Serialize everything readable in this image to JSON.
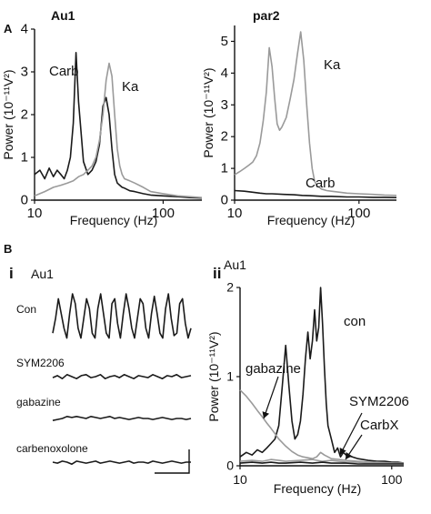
{
  "labels": {
    "panel_a": "A",
    "panel_b": "B",
    "sub_i": "i",
    "sub_ii": "ii",
    "au1_i": "Au1",
    "au1_ii": "Au1"
  },
  "colors": {
    "black_trace": "#1a1a1a",
    "gray_trace": "#9a9a9a"
  },
  "chart_data": [
    {
      "type": "line",
      "title": "Au1",
      "xlabel": "Frequency (Hz)",
      "ylabel": "Power (10⁻¹¹V²)",
      "xscale": "log",
      "xlim": [
        10,
        200
      ],
      "ylim": [
        0,
        4
      ],
      "x_tick_labels": [
        "10",
        "100"
      ],
      "y_ticks": [
        0,
        1,
        2,
        3,
        4
      ],
      "series": [
        {
          "name": "Carb",
          "color": "#1a1a1a",
          "x": [
            10,
            11,
            12,
            13,
            14,
            15,
            16,
            17,
            18,
            19,
            20,
            21,
            22,
            24,
            26,
            28,
            30,
            32,
            34,
            36,
            38,
            40,
            42,
            44,
            46,
            48,
            50,
            55,
            60,
            70,
            80,
            100,
            130,
            160,
            200
          ],
          "y": [
            0.6,
            0.7,
            0.5,
            0.75,
            0.55,
            0.7,
            0.6,
            0.5,
            0.7,
            1.0,
            1.8,
            3.45,
            2.3,
            0.9,
            0.6,
            0.7,
            0.9,
            1.3,
            2.2,
            2.4,
            2.0,
            1.2,
            0.6,
            0.4,
            0.35,
            0.3,
            0.28,
            0.22,
            0.2,
            0.15,
            0.12,
            0.1,
            0.08,
            0.06,
            0.05
          ]
        },
        {
          "name": "Ka",
          "color": "#9a9a9a",
          "x": [
            10,
            12,
            14,
            16,
            18,
            20,
            22,
            24,
            26,
            28,
            30,
            32,
            34,
            36,
            38,
            40,
            42,
            44,
            46,
            48,
            50,
            55,
            60,
            70,
            80,
            100,
            130,
            160,
            200
          ],
          "y": [
            0.1,
            0.2,
            0.3,
            0.35,
            0.4,
            0.45,
            0.55,
            0.6,
            0.7,
            0.8,
            1.0,
            1.4,
            2.0,
            2.8,
            3.2,
            2.9,
            2.0,
            1.2,
            0.8,
            0.6,
            0.5,
            0.45,
            0.4,
            0.3,
            0.2,
            0.15,
            0.1,
            0.08,
            0.06
          ]
        }
      ],
      "annotations": [
        {
          "text": "Carb",
          "target_series": "Carb"
        },
        {
          "text": "Ka",
          "target_series": "Ka"
        }
      ]
    },
    {
      "type": "line",
      "title": "par2",
      "xlabel": "Frequency (Hz)",
      "ylabel": "Power (10⁻¹¹V²)",
      "xscale": "log",
      "xlim": [
        10,
        200
      ],
      "ylim": [
        0,
        5.5
      ],
      "x_tick_labels": [
        "10",
        "100"
      ],
      "y_ticks": [
        0,
        1,
        2,
        3,
        4,
        5
      ],
      "series": [
        {
          "name": "Ka",
          "color": "#9a9a9a",
          "x": [
            10,
            11,
            12,
            13,
            14,
            15,
            16,
            17,
            18,
            19,
            20,
            21,
            22,
            23,
            24,
            26,
            28,
            30,
            32,
            34,
            36,
            38,
            40,
            42,
            44,
            46,
            48,
            50,
            55,
            60,
            70,
            80,
            100,
            130,
            160,
            200
          ],
          "y": [
            0.8,
            0.9,
            1.0,
            1.1,
            1.2,
            1.4,
            1.8,
            2.5,
            3.4,
            4.8,
            4.2,
            3.2,
            2.4,
            2.2,
            2.3,
            2.6,
            3.2,
            3.8,
            4.6,
            5.3,
            4.4,
            3.0,
            1.8,
            1.0,
            0.6,
            0.45,
            0.4,
            0.35,
            0.3,
            0.28,
            0.25,
            0.22,
            0.2,
            0.18,
            0.16,
            0.15
          ]
        },
        {
          "name": "Carb",
          "color": "#1a1a1a",
          "x": [
            10,
            12,
            14,
            16,
            18,
            20,
            25,
            30,
            35,
            40,
            50,
            60,
            80,
            100,
            130,
            160,
            200
          ],
          "y": [
            0.3,
            0.28,
            0.25,
            0.22,
            0.2,
            0.2,
            0.18,
            0.17,
            0.15,
            0.14,
            0.12,
            0.12,
            0.1,
            0.1,
            0.09,
            0.09,
            0.08
          ]
        }
      ],
      "annotations": [
        {
          "text": "Ka",
          "target_series": "Ka"
        },
        {
          "text": "Carb",
          "target_series": "Carb"
        }
      ]
    },
    {
      "type": "line",
      "title": "Au1",
      "xlabel": "",
      "ylabel": "",
      "traces": [
        {
          "name": "Con",
          "values": [
            0.2,
            0.5,
            0.9,
            0.6,
            0.3,
            0.1,
            0.6,
            1.0,
            0.8,
            0.3,
            0.1,
            0.5,
            0.9,
            0.7,
            0.2,
            0.1,
            0.7,
            1.0,
            0.6,
            0.2,
            0.1,
            0.8,
            0.9,
            0.4,
            0.1,
            0.6,
            1.0,
            0.7,
            0.3,
            0.1,
            0.5,
            0.9,
            0.8,
            0.3,
            0.1,
            0.6,
            0.95,
            0.6,
            0.2,
            0.1,
            0.7,
            1.0,
            0.5,
            0.15,
            0.2,
            0.8,
            0.9,
            0.4,
            0.1,
            0.3
          ]
        },
        {
          "name": "SYM2206",
          "values": [
            0.45,
            0.55,
            0.4,
            0.6,
            0.5,
            0.4,
            0.55,
            0.6,
            0.45,
            0.5,
            0.6,
            0.4,
            0.5,
            0.55,
            0.45,
            0.6,
            0.5,
            0.4,
            0.55,
            0.5,
            0.45,
            0.6,
            0.5,
            0.4,
            0.55,
            0.5,
            0.6,
            0.45,
            0.5,
            0.55
          ]
        },
        {
          "name": "gabazine",
          "values": [
            0.4,
            0.45,
            0.5,
            0.6,
            0.55,
            0.6,
            0.55,
            0.5,
            0.6,
            0.55,
            0.5,
            0.55,
            0.6,
            0.5,
            0.55,
            0.5,
            0.45,
            0.5,
            0.55,
            0.5,
            0.5,
            0.45,
            0.5,
            0.55,
            0.5,
            0.45,
            0.5,
            0.5,
            0.45,
            0.5
          ]
        },
        {
          "name": "carbenoxolone",
          "values": [
            0.5,
            0.45,
            0.55,
            0.5,
            0.4,
            0.55,
            0.5,
            0.45,
            0.5,
            0.55,
            0.45,
            0.5,
            0.55,
            0.5,
            0.45,
            0.5,
            0.55,
            0.45,
            0.5,
            0.5,
            0.45,
            0.55,
            0.5,
            0.45,
            0.5,
            0.55,
            0.5,
            0.45,
            0.5,
            0.5
          ]
        }
      ]
    },
    {
      "type": "line",
      "title": "Au1",
      "xlabel": "Frequency (Hz)",
      "ylabel": "Power (10⁻¹¹V²)",
      "xscale": "log",
      "xlim": [
        10,
        120
      ],
      "ylim": [
        0,
        2
      ],
      "x_tick_labels": [
        "10",
        "100"
      ],
      "y_ticks": [
        0,
        1,
        2
      ],
      "series": [
        {
          "name": "con",
          "color": "#1a1a1a",
          "x": [
            10,
            11,
            12,
            13,
            14,
            15,
            16,
            17,
            18,
            19,
            20,
            21,
            22,
            23,
            24,
            25,
            26,
            27,
            28,
            29,
            30,
            31,
            32,
            33,
            34,
            35,
            36,
            37,
            38,
            40,
            42,
            44,
            46,
            48,
            50,
            55,
            60,
            70,
            80,
            90,
            100,
            110,
            120
          ],
          "y": [
            0.1,
            0.15,
            0.12,
            0.18,
            0.15,
            0.2,
            0.25,
            0.3,
            0.45,
            0.9,
            1.35,
            0.9,
            0.5,
            0.3,
            0.35,
            0.5,
            0.8,
            1.2,
            1.5,
            1.2,
            1.4,
            1.75,
            1.4,
            1.55,
            2.0,
            1.6,
            1.1,
            0.7,
            0.45,
            0.3,
            0.15,
            0.2,
            0.1,
            0.15,
            0.12,
            0.1,
            0.08,
            0.06,
            0.05,
            0.05,
            0.04,
            0.04,
            0.03
          ]
        },
        {
          "name": "gabazine",
          "color": "#9a9a9a",
          "x": [
            10,
            11,
            12,
            13,
            14,
            15,
            16,
            17,
            18,
            20,
            22,
            24,
            26,
            28,
            30,
            32,
            34,
            36,
            38,
            40,
            45,
            50,
            60,
            70,
            80,
            100,
            120
          ],
          "y": [
            0.85,
            0.78,
            0.7,
            0.62,
            0.55,
            0.48,
            0.42,
            0.36,
            0.3,
            0.22,
            0.16,
            0.12,
            0.1,
            0.09,
            0.08,
            0.1,
            0.15,
            0.12,
            0.1,
            0.08,
            0.07,
            0.06,
            0.05,
            0.04,
            0.04,
            0.03,
            0.03
          ]
        },
        {
          "name": "SYM2206",
          "color": "#9a9a9a",
          "x": [
            10,
            12,
            14,
            16,
            18,
            20,
            25,
            30,
            35,
            40,
            45,
            50,
            60,
            70,
            80,
            100,
            120
          ],
          "y": [
            0.05,
            0.06,
            0.05,
            0.07,
            0.06,
            0.05,
            0.06,
            0.07,
            0.05,
            0.06,
            0.05,
            0.04,
            0.04,
            0.03,
            0.03,
            0.03,
            0.02
          ]
        },
        {
          "name": "CarbX",
          "color": "#1a1a1a",
          "x": [
            10,
            12,
            14,
            16,
            18,
            20,
            25,
            30,
            35,
            40,
            45,
            50,
            60,
            70,
            80,
            100,
            120
          ],
          "y": [
            0.03,
            0.04,
            0.03,
            0.04,
            0.03,
            0.03,
            0.04,
            0.03,
            0.04,
            0.03,
            0.03,
            0.03,
            0.02,
            0.02,
            0.02,
            0.02,
            0.02
          ]
        }
      ],
      "annotations": [
        {
          "text": "con",
          "target_series": "con"
        },
        {
          "text": "gabazine",
          "target_series": "gabazine"
        },
        {
          "text": "SYM2206",
          "target_series": "SYM2206"
        },
        {
          "text": "CarbX",
          "target_series": "CarbX"
        }
      ]
    }
  ]
}
